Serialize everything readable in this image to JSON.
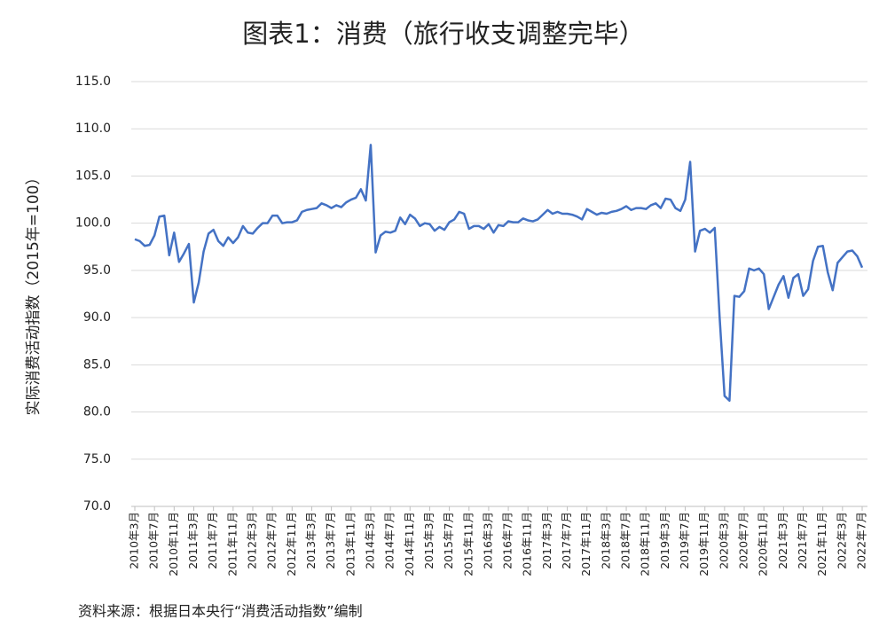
{
  "chart_data": {
    "type": "line",
    "title": "图表1：消费（旅行收支调整完毕）",
    "y_label": "实际消费活动指数（2015年=100）",
    "source": "资料来源：根据日本央行“消费活动指数”编制",
    "color": "#4472c4",
    "grid": true,
    "ylim": [
      70,
      115
    ],
    "yticks": [
      {
        "value": 70,
        "label": "70.0"
      },
      {
        "value": 75,
        "label": "75.0"
      },
      {
        "value": 80,
        "label": "80.0"
      },
      {
        "value": 85,
        "label": "85.0"
      },
      {
        "value": 90,
        "label": "90.0"
      },
      {
        "value": 95,
        "label": "95.0"
      },
      {
        "value": 100,
        "label": "100.0"
      },
      {
        "value": 105,
        "label": "105.0"
      },
      {
        "value": 110,
        "label": "110.0"
      },
      {
        "value": 115,
        "label": "115.0"
      }
    ],
    "categories": [
      "2010年3月",
      null,
      null,
      null,
      "2010年7月",
      null,
      null,
      null,
      "2010年11月",
      null,
      null,
      null,
      "2011年3月",
      null,
      null,
      null,
      "2011年7月",
      null,
      null,
      null,
      "2011年11月",
      null,
      null,
      null,
      "2012年3月",
      null,
      null,
      null,
      "2012年7月",
      null,
      null,
      null,
      "2012年11月",
      null,
      null,
      null,
      "2013年3月",
      null,
      null,
      null,
      "2013年7月",
      null,
      null,
      null,
      "2013年11月",
      null,
      null,
      null,
      "2014年3月",
      null,
      null,
      null,
      "2014年7月",
      null,
      null,
      null,
      "2014年11月",
      null,
      null,
      null,
      "2015年3月",
      null,
      null,
      null,
      "2015年7月",
      null,
      null,
      null,
      "2015年11月",
      null,
      null,
      null,
      "2016年3月",
      null,
      null,
      null,
      "2016年7月",
      null,
      null,
      null,
      "2016年11月",
      null,
      null,
      null,
      "2017年3月",
      null,
      null,
      null,
      "2017年7月",
      null,
      null,
      null,
      "2017年11月",
      null,
      null,
      null,
      "2018年3月",
      null,
      null,
      null,
      "2018年7月",
      null,
      null,
      null,
      "2018年11月",
      null,
      null,
      null,
      "2019年3月",
      null,
      null,
      null,
      "2019年7月",
      null,
      null,
      null,
      "2019年11月",
      null,
      null,
      null,
      "2020年3月",
      null,
      null,
      null,
      "2020年7月",
      null,
      null,
      null,
      "2020年11月",
      null,
      null,
      null,
      "2021年3月",
      null,
      null,
      null,
      "2021年7月",
      null,
      null,
      null,
      "2021年11月",
      null,
      null,
      null,
      "2022年3月",
      null,
      null,
      null,
      "2022年7月"
    ],
    "values": [
      98.3,
      98.1,
      97.6,
      97.7,
      98.7,
      100.7,
      100.8,
      96.6,
      99.0,
      95.9,
      96.8,
      97.8,
      91.6,
      93.7,
      97.0,
      98.9,
      99.3,
      98.1,
      97.6,
      98.5,
      97.9,
      98.5,
      99.7,
      99.0,
      98.9,
      99.5,
      100.0,
      100.0,
      100.8,
      100.8,
      100.0,
      100.1,
      100.1,
      100.3,
      101.2,
      101.4,
      101.5,
      101.6,
      102.1,
      101.9,
      101.6,
      101.9,
      101.7,
      102.2,
      102.5,
      102.7,
      103.6,
      102.4,
      108.3,
      96.9,
      98.7,
      99.1,
      99.0,
      99.2,
      100.6,
      99.9,
      100.9,
      100.5,
      99.7,
      100.0,
      99.9,
      99.2,
      99.6,
      99.3,
      100.1,
      100.4,
      101.2,
      101.0,
      99.4,
      99.7,
      99.7,
      99.4,
      99.9,
      99.0,
      99.8,
      99.7,
      100.2,
      100.1,
      100.1,
      100.5,
      100.3,
      100.2,
      100.4,
      100.9,
      101.4,
      101.0,
      101.2,
      101.0,
      101.0,
      100.9,
      100.7,
      100.4,
      101.5,
      101.2,
      100.9,
      101.1,
      101.0,
      101.2,
      101.3,
      101.5,
      101.8,
      101.4,
      101.6,
      101.6,
      101.5,
      101.9,
      102.1,
      101.6,
      102.6,
      102.5,
      101.6,
      101.3,
      102.5,
      106.5,
      97.0,
      99.2,
      99.4,
      99.0,
      99.5,
      90.0,
      81.7,
      81.2,
      92.3,
      92.2,
      92.8,
      95.2,
      95.0,
      95.2,
      94.6,
      90.9,
      92.2,
      93.5,
      94.4,
      92.1,
      94.2,
      94.6,
      92.3,
      93.0,
      96.0,
      97.5,
      97.6,
      94.8,
      92.9,
      95.8,
      96.4,
      97.0,
      97.1,
      96.5,
      95.3
    ]
  }
}
